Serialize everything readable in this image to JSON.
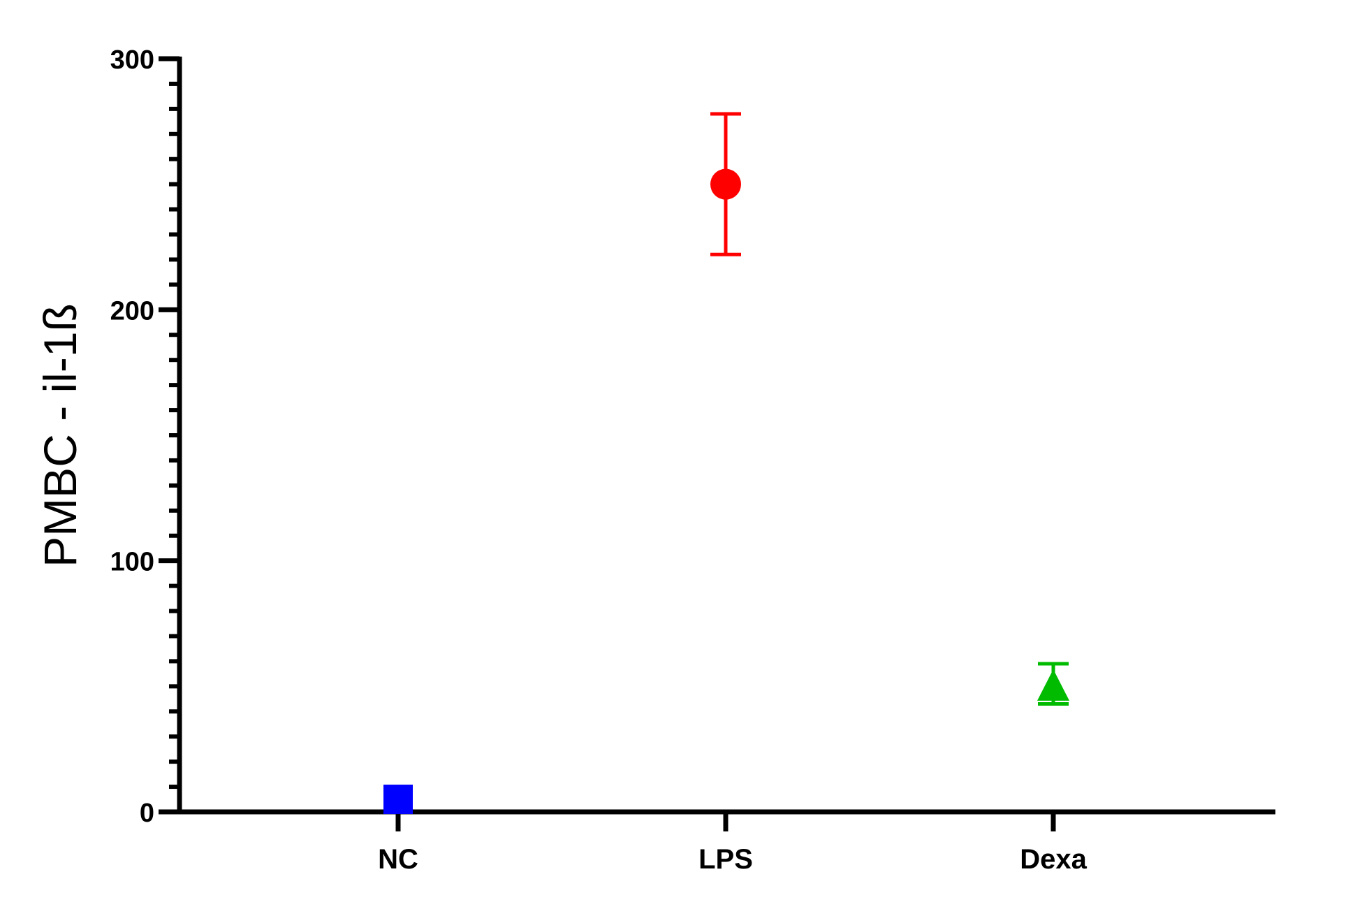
{
  "chart_data": {
    "type": "scatter",
    "title": "",
    "xlabel": "",
    "ylabel": "PMBC - il-1ß",
    "ylim": [
      0,
      300
    ],
    "yticks": [
      0,
      100,
      200,
      300
    ],
    "ytick_labels": [
      "0",
      "100",
      "200",
      "300"
    ],
    "minor_ticks_per_major": 10,
    "categories": [
      "NC",
      "LPS",
      "Dexa"
    ],
    "grid": false,
    "legend": "none",
    "series": [
      {
        "category": "NC",
        "value": 5,
        "error_low": 5,
        "error_high": 5,
        "marker": "square",
        "color": "#0000ff"
      },
      {
        "category": "LPS",
        "value": 250,
        "error_low": 222,
        "error_high": 278,
        "marker": "circle",
        "color": "#ff0000"
      },
      {
        "category": "Dexa",
        "value": 49,
        "error_low": 43,
        "error_high": 59,
        "marker": "triangle",
        "color": "#00bb00"
      }
    ]
  }
}
